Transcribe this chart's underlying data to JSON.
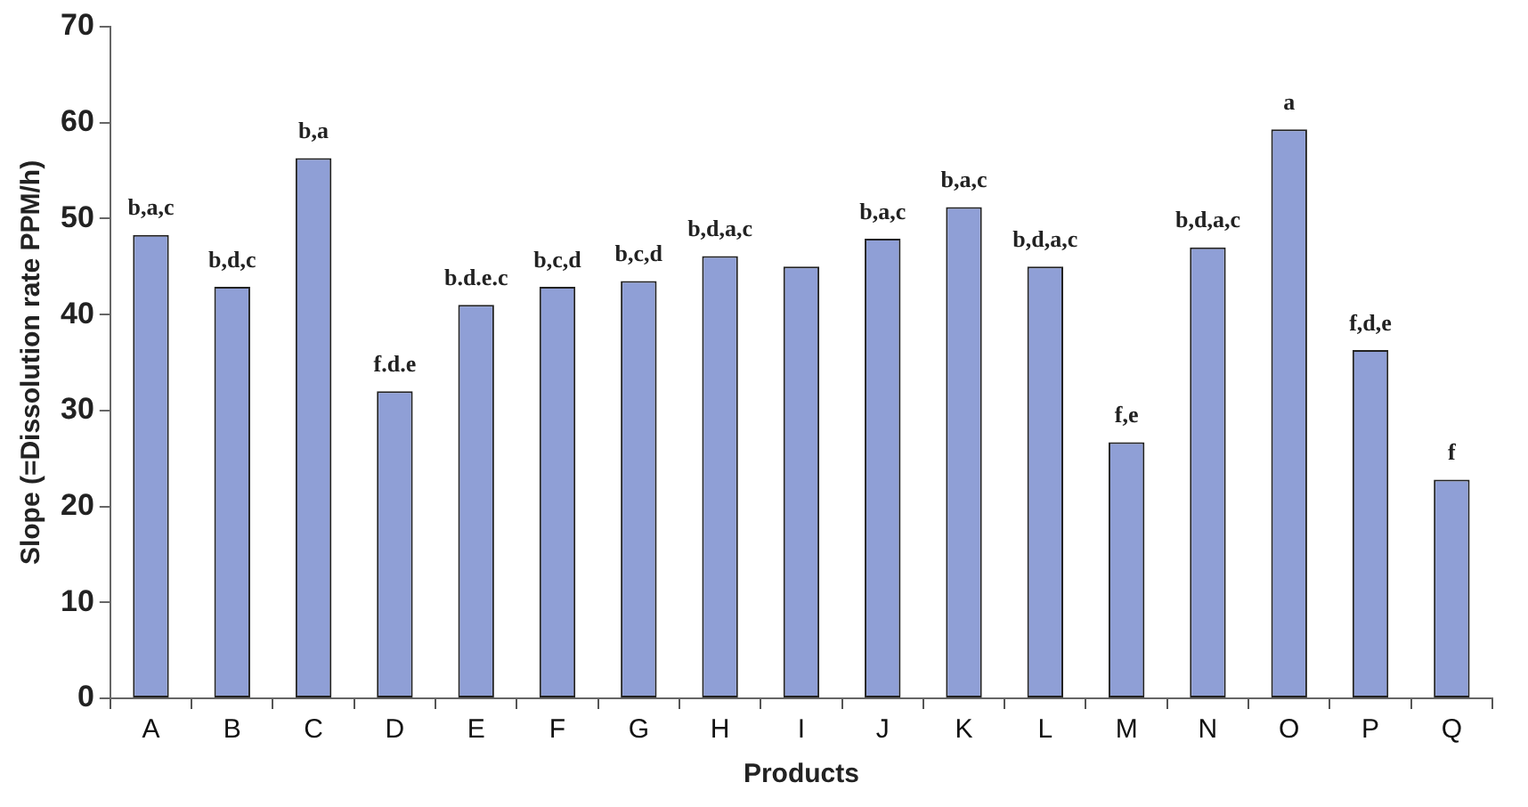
{
  "chart_data": {
    "type": "bar",
    "xlabel": "Products",
    "ylabel": "Slope (=Dissolution rate PPM/h)",
    "categories": [
      "A",
      "B",
      "C",
      "D",
      "E",
      "F",
      "G",
      "H",
      "I",
      "J",
      "K",
      "L",
      "M",
      "N",
      "O",
      "P",
      "Q"
    ],
    "values": [
      48.3,
      42.9,
      56.3,
      32.0,
      41.0,
      42.9,
      43.5,
      46.1,
      45.0,
      47.9,
      51.2,
      45.0,
      26.7,
      47.0,
      59.3,
      36.3,
      22.8
    ],
    "color": "#8f9fd6",
    "ylim": [
      0,
      70
    ],
    "yticks": [
      0,
      10,
      20,
      30,
      40,
      50,
      60,
      70
    ],
    "grid": false,
    "legend": false,
    "annotations": [
      {
        "text": "b,a,c",
        "x": "A",
        "y": 48.3
      },
      {
        "text": "b,d,c",
        "x": "B",
        "y": 42.9
      },
      {
        "text": "b,a",
        "x": "C",
        "y": 56.3
      },
      {
        "text": "f.d.e",
        "x": "D",
        "y": 32.0
      },
      {
        "text": "b.d.e.c",
        "x": "E",
        "y": 41.0
      },
      {
        "text": "b,c,d",
        "x": "F",
        "y": 42.9
      },
      {
        "text": "b,c,d",
        "x": "G",
        "y": 43.5
      },
      {
        "text": "b,d,a,c",
        "x": "H",
        "y": 46.1
      },
      {
        "text": "b,a,c",
        "x": "J",
        "y": 47.9
      },
      {
        "text": "b,a,c",
        "x": "K",
        "y": 51.2
      },
      {
        "text": "b,d,a,c",
        "x": "L",
        "y": 45.0
      },
      {
        "text": "f,e",
        "x": "M",
        "y": 26.7
      },
      {
        "text": "b,d,a,c",
        "x": "N",
        "y": 47.0
      },
      {
        "text": "a",
        "x": "O",
        "y": 59.3
      },
      {
        "text": "f,d,e",
        "x": "P",
        "y": 36.3
      },
      {
        "text": "f",
        "x": "Q",
        "y": 22.8
      }
    ]
  }
}
